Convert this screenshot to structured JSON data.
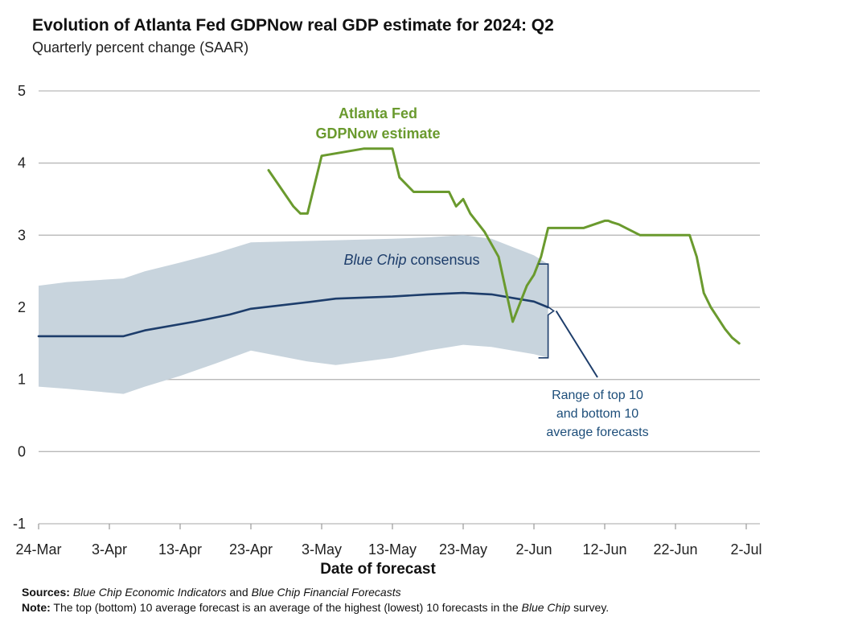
{
  "chart_data": {
    "type": "line",
    "title": "Evolution of Atlanta Fed GDPNow real GDP estimate for 2024: Q2",
    "subtitle": "Quarterly percent change (SAAR)",
    "xlabel": "Date of forecast",
    "ylabel": "",
    "ylim": [
      -1,
      5
    ],
    "yticks": [
      5,
      4,
      3,
      2,
      1,
      0,
      -1
    ],
    "xticks": [
      "24-Mar",
      "3-Apr",
      "13-Apr",
      "23-Apr",
      "3-May",
      "13-May",
      "23-May",
      "2-Jun",
      "12-Jun",
      "22-Jun",
      "2-Jul"
    ],
    "xrange_days": [
      0,
      100
    ],
    "grid": true,
    "series": [
      {
        "name": "Atlanta Fed GDPNow estimate",
        "color": "#6a9a2e",
        "x": [
          32.5,
          36,
          37,
          38,
          40,
          43,
          46,
          49,
          50,
          51,
          53,
          58,
          59,
          60,
          61,
          63,
          65,
          67,
          69,
          70,
          71,
          72,
          73,
          75,
          76,
          77,
          80,
          80.5,
          81,
          82,
          83,
          85,
          87,
          91,
          92,
          93,
          94,
          95,
          97,
          98,
          99
        ],
        "values": [
          3.9,
          3.4,
          3.3,
          3.3,
          4.1,
          4.15,
          4.2,
          4.2,
          4.2,
          3.8,
          3.6,
          3.6,
          3.4,
          3.5,
          3.3,
          3.05,
          2.7,
          1.8,
          2.3,
          2.45,
          2.7,
          3.1,
          3.1,
          3.1,
          3.1,
          3.1,
          3.2,
          3.2,
          3.18,
          3.15,
          3.1,
          3.0,
          3.0,
          3.0,
          3.0,
          2.7,
          2.2,
          2.0,
          1.7,
          1.58,
          1.5
        ]
      },
      {
        "name": "Blue Chip consensus",
        "color": "#1d3d6b",
        "x": [
          0,
          12,
          15,
          22,
          27,
          30,
          38,
          42,
          50,
          55,
          60,
          64,
          70,
          72
        ],
        "values": [
          1.6,
          1.6,
          1.68,
          1.8,
          1.9,
          1.98,
          2.07,
          2.12,
          2.15,
          2.18,
          2.2,
          2.18,
          2.08,
          2.0
        ]
      },
      {
        "name": "Range of top 10 and bottom 10 average forecasts",
        "color": "#c8d4dd",
        "x": [
          0,
          4,
          12,
          15,
          20,
          25,
          30,
          38,
          42,
          50,
          55,
          60,
          64,
          70,
          72
        ],
        "upper": [
          2.3,
          2.35,
          2.4,
          2.5,
          2.62,
          2.75,
          2.9,
          2.92,
          2.93,
          2.95,
          2.97,
          3.0,
          2.95,
          2.72,
          2.6
        ],
        "lower": [
          0.9,
          0.87,
          0.8,
          0.9,
          1.05,
          1.22,
          1.4,
          1.25,
          1.2,
          1.3,
          1.4,
          1.48,
          1.45,
          1.35,
          1.3
        ]
      }
    ],
    "annotations": {
      "gdpnow_line1": "Atlanta Fed",
      "gdpnow_line2": "GDPNow estimate",
      "bluechip_italic": "Blue Chip",
      "bluechip_rest": " consensus",
      "range_line1": "Range of top 10",
      "range_line2": "and bottom 10",
      "range_line3": "average forecasts"
    }
  },
  "footnotes": {
    "sources_label": "Sources:",
    "sources_italic1": "Blue Chip Economic Indicators",
    "sources_mid": " and ",
    "sources_italic2": "Blue Chip Financial Forecasts",
    "note_label": "Note:",
    "note_text1": " The top (bottom) 10 average forecast is an average of the highest (lowest) 10 forecasts in the ",
    "note_italic": "Blue Chip",
    "note_text2": " survey."
  }
}
